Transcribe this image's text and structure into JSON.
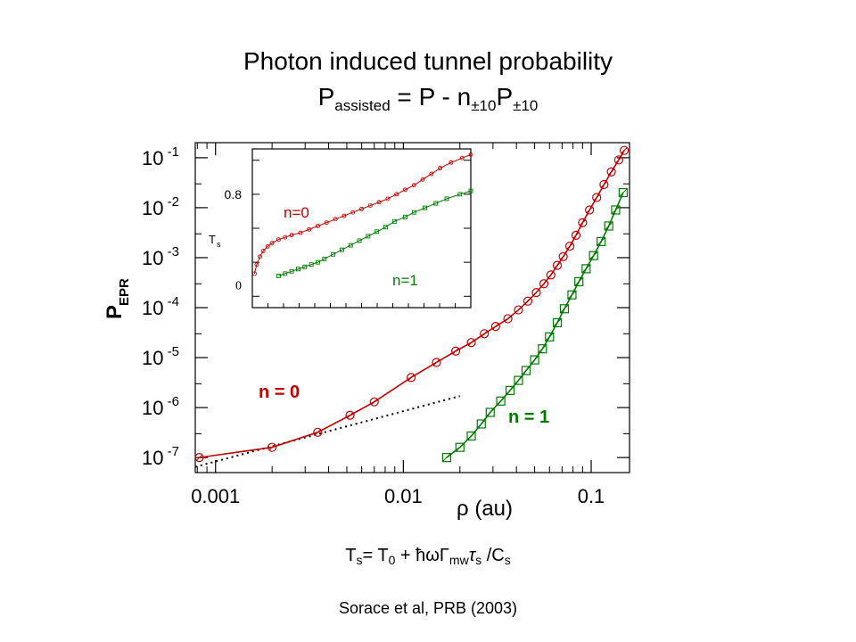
{
  "title": {
    "line1": "Photon induced tunnel probability",
    "line2_main": "P",
    "line2_sub": "assisted",
    "line2_eq": " = P - n",
    "line2_sub2": "±10",
    "line2_p": "P",
    "line2_sub3": "±10"
  },
  "formula": {
    "t": "T",
    "t_sub": "s",
    "eq": "= T",
    "t0_sub": "0",
    "plus": " + ħωΓ",
    "mw_sub": "mw",
    "tau": "τ",
    "tau_sub": "s",
    "div": " /C",
    "c_sub": "s"
  },
  "citation": "Sorace et al, PRB (2003)",
  "colors": {
    "n0": "#c00000",
    "n1": "#007a00",
    "axis": "#000000"
  },
  "chart_data": [
    {
      "type": "scatter",
      "log_x": true,
      "log_y": true,
      "xlim": [
        0.00078,
        0.16
      ],
      "ylim": [
        5e-08,
        0.2
      ],
      "xlabel": "ρ (au)",
      "ylabel_main": "P",
      "ylabel_sub": "EPR",
      "x_ticks": [
        0.001,
        0.01,
        0.1
      ],
      "x_tick_labels": [
        "0.001",
        "0.01",
        "0.1"
      ],
      "y_ticks": [
        1e-07,
        1e-06,
        1e-05,
        0.0001,
        0.001,
        0.01,
        0.1
      ],
      "y_tick_exps": [
        "-7",
        "-6",
        "-5",
        "-4",
        "-3",
        "-2",
        "-1"
      ],
      "y_tick_base": "10",
      "series": [
        {
          "label": "n = 0",
          "marker": "circle",
          "color": "#c00000",
          "x": [
            0.00082,
            0.002,
            0.0035,
            0.0052,
            0.007,
            0.011,
            0.015,
            0.019,
            0.023,
            0.027,
            0.031,
            0.036,
            0.041,
            0.046,
            0.051,
            0.056,
            0.061,
            0.066,
            0.071,
            0.077,
            0.083,
            0.09,
            0.098,
            0.107,
            0.117,
            0.128,
            0.14,
            0.15
          ],
          "y": [
            1e-07,
            1.6e-07,
            3.2e-07,
            7e-07,
            1.3e-06,
            4e-06,
            8e-06,
            1.35e-05,
            2e-05,
            3e-05,
            4.2e-05,
            6e-05,
            9e-05,
            0.000135,
            0.0002,
            0.0003,
            0.00045,
            0.0007,
            0.00105,
            0.0017,
            0.0028,
            0.005,
            0.009,
            0.016,
            0.029,
            0.052,
            0.09,
            0.14
          ]
        },
        {
          "label": "n = 1",
          "marker": "square",
          "color": "#007a00",
          "x": [
            0.017,
            0.02,
            0.023,
            0.026,
            0.029,
            0.033,
            0.037,
            0.041,
            0.045,
            0.05,
            0.055,
            0.06,
            0.066,
            0.072,
            0.079,
            0.086,
            0.094,
            0.103,
            0.113,
            0.124,
            0.135,
            0.148
          ],
          "y": [
            1e-07,
            1.6e-07,
            2.7e-07,
            4.7e-07,
            8e-07,
            1.35e-06,
            2.2e-06,
            3.5e-06,
            5.5e-06,
            9e-06,
            1.5e-05,
            2.6e-05,
            5e-05,
            9.5e-05,
            0.00018,
            0.00033,
            0.0006,
            0.0011,
            0.0021,
            0.0043,
            0.009,
            0.02
          ]
        }
      ],
      "reference_line": {
        "x": [
          0.00078,
          0.02
        ],
        "y": [
          6.5e-08,
          1.7e-06
        ],
        "style": "dotted"
      }
    },
    {
      "type": "line",
      "inset": true,
      "xlim": [
        0,
        1
      ],
      "ylim": [
        -0.2,
        1.2
      ],
      "ylabel_main": "T",
      "ylabel_sub": "s",
      "y_tick_labels": [
        {
          "value": 0.8,
          "text": "0.8"
        },
        {
          "value": 0,
          "text": "0"
        }
      ],
      "series": [
        {
          "label": "n=0",
          "marker": "circle",
          "color": "#c00000",
          "x": [
            0.01,
            0.02,
            0.035,
            0.05,
            0.07,
            0.09,
            0.12,
            0.15,
            0.18,
            0.22,
            0.26,
            0.3,
            0.34,
            0.38,
            0.42,
            0.46,
            0.5,
            0.54,
            0.58,
            0.62,
            0.66,
            0.7,
            0.74,
            0.78,
            0.82,
            0.86,
            0.91,
            0.96,
            1.0
          ],
          "y": [
            0.1,
            0.18,
            0.25,
            0.3,
            0.34,
            0.37,
            0.4,
            0.42,
            0.44,
            0.46,
            0.49,
            0.52,
            0.55,
            0.58,
            0.61,
            0.64,
            0.67,
            0.7,
            0.73,
            0.76,
            0.8,
            0.84,
            0.88,
            0.93,
            0.98,
            1.03,
            1.08,
            1.12,
            1.15
          ]
        },
        {
          "label": "n=1",
          "marker": "square",
          "color": "#007a00",
          "x": [
            0.12,
            0.15,
            0.18,
            0.21,
            0.24,
            0.27,
            0.3,
            0.33,
            0.37,
            0.41,
            0.45,
            0.49,
            0.53,
            0.57,
            0.61,
            0.65,
            0.7,
            0.74,
            0.79,
            0.84,
            0.89,
            0.95,
            1.0
          ],
          "y": [
            0.08,
            0.1,
            0.12,
            0.14,
            0.16,
            0.18,
            0.2,
            0.23,
            0.27,
            0.31,
            0.35,
            0.39,
            0.43,
            0.47,
            0.51,
            0.56,
            0.6,
            0.64,
            0.68,
            0.72,
            0.76,
            0.8,
            0.83
          ]
        }
      ]
    }
  ]
}
